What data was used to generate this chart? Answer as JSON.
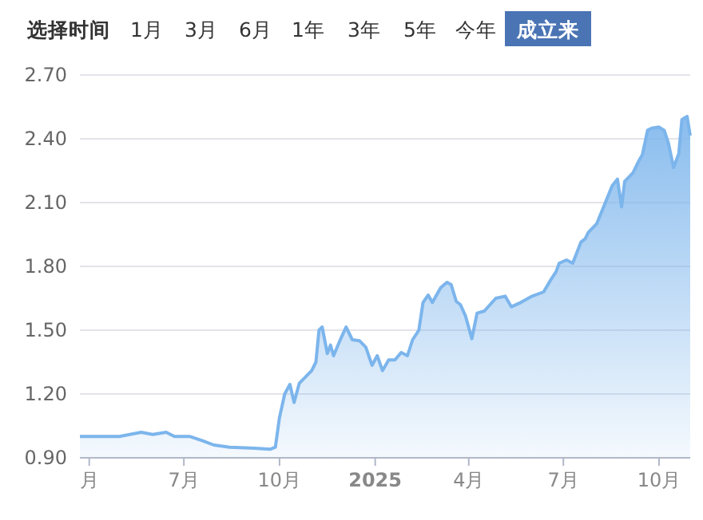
{
  "chart_data": {
    "type": "area",
    "annotations": [
      "选择时间",
      "1月",
      "3月",
      "6月",
      "1年",
      "3年",
      "5年",
      "今年",
      "成立来"
    ],
    "x": [
      "2024-03-23",
      "2024-04-30",
      "2024-05-21",
      "2024-06-01",
      "2024-06-14",
      "2024-06-22",
      "2024-07-07",
      "2024-07-19",
      "2024-07-30",
      "2024-08-14",
      "2024-09-07",
      "2024-09-22",
      "2024-09-27",
      "2024-10-01",
      "2024-10-06",
      "2024-10-11",
      "2024-10-15",
      "2024-10-20",
      "2024-10-26",
      "2024-11-01",
      "2024-11-05",
      "2024-11-08",
      "2024-11-11",
      "2024-11-16",
      "2024-11-19",
      "2024-11-22",
      "2024-11-28",
      "2024-12-04",
      "2024-12-10",
      "2024-12-17",
      "2024-12-23",
      "2024-12-29",
      "2025-01-03",
      "2025-01-08",
      "2025-01-14",
      "2025-01-20",
      "2025-01-26",
      "2025-02-01",
      "2025-02-06",
      "2025-02-12",
      "2025-02-16",
      "2025-02-21",
      "2025-02-25",
      "2025-03-05",
      "2025-03-11",
      "2025-03-15",
      "2025-03-20",
      "2025-03-24",
      "2025-03-29",
      "2025-04-04",
      "2025-04-09",
      "2025-04-16",
      "2025-04-27",
      "2025-05-06",
      "2025-05-12",
      "2025-05-21",
      "2025-06-01",
      "2025-06-12",
      "2025-06-18",
      "2025-06-24",
      "2025-06-27",
      "2025-07-04",
      "2025-07-10",
      "2025-07-18",
      "2025-07-22",
      "2025-07-25",
      "2025-08-02",
      "2025-08-10",
      "2025-08-17",
      "2025-08-22",
      "2025-08-26",
      "2025-08-29",
      "2025-09-06",
      "2025-09-12",
      "2025-09-15",
      "2025-09-20",
      "2025-09-24",
      "2025-10-01",
      "2025-10-06",
      "2025-10-10",
      "2025-10-15",
      "2025-10-20",
      "2025-10-23",
      "2025-10-28",
      "2025-10-31"
    ],
    "series": [
      {
        "color": "#7cb5ec",
        "values": [
          1.0,
          1.0,
          1.02,
          1.01,
          1.02,
          1.0,
          1.0,
          0.98,
          0.96,
          0.95,
          0.945,
          0.94,
          0.95,
          1.09,
          1.2,
          1.245,
          1.16,
          1.25,
          1.28,
          1.31,
          1.35,
          1.5,
          1.515,
          1.39,
          1.43,
          1.38,
          1.45,
          1.515,
          1.455,
          1.45,
          1.42,
          1.335,
          1.38,
          1.31,
          1.36,
          1.36,
          1.395,
          1.38,
          1.455,
          1.5,
          1.63,
          1.665,
          1.63,
          1.7,
          1.725,
          1.715,
          1.635,
          1.62,
          1.565,
          1.46,
          1.58,
          1.59,
          1.65,
          1.66,
          1.61,
          1.63,
          1.66,
          1.68,
          1.73,
          1.775,
          1.815,
          1.83,
          1.815,
          1.915,
          1.93,
          1.96,
          2.0,
          2.095,
          2.18,
          2.21,
          2.08,
          2.2,
          2.24,
          2.3,
          2.325,
          2.44,
          2.45,
          2.455,
          2.44,
          2.38,
          2.265,
          2.33,
          2.49,
          2.505,
          2.415
        ]
      }
    ],
    "xlim": [
      "2024-03-23",
      "2025-10-31"
    ],
    "ylim": [
      0.9,
      2.7
    ],
    "xticks": [
      {
        "value": "2024-04-01",
        "label": "月"
      },
      {
        "value": "2024-07-01",
        "label": "7月"
      },
      {
        "value": "2024-10-01",
        "label": "10月"
      },
      {
        "value": "2025-01-01",
        "label": "2025"
      },
      {
        "value": "2025-04-01",
        "label": "4月"
      },
      {
        "value": "2025-07-01",
        "label": "7月"
      },
      {
        "value": "2025-10-01",
        "label": "10月"
      }
    ],
    "yticks": [
      {
        "value": 0.9,
        "label": "0.90"
      },
      {
        "value": 1.2,
        "label": "1.20"
      },
      {
        "value": 1.5,
        "label": "1.50"
      },
      {
        "value": 1.8,
        "label": "1.80"
      },
      {
        "value": 2.1,
        "label": "2.10"
      },
      {
        "value": 2.4,
        "label": "2.40"
      },
      {
        "value": 2.7,
        "label": "2.70"
      }
    ],
    "grid": "y"
  }
}
